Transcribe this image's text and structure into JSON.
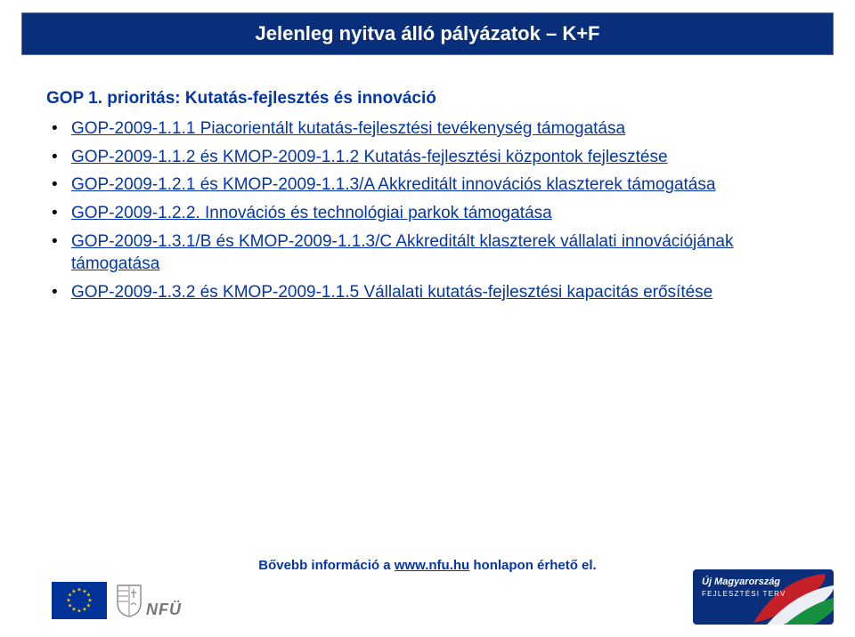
{
  "colors": {
    "title_bar_bg": "#0a2f7a",
    "title_text": "#ffffff",
    "heading_text": "#0536a5",
    "link_text": "#0536a5",
    "body_bg": "#ffffff",
    "eu_flag_bg": "#003399",
    "eu_star": "#ffcc00",
    "umft_bg": "#0a2f7a"
  },
  "title_bar": {
    "text": "Jelenleg nyitva álló pályázatok – K+F"
  },
  "content": {
    "heading": "GOP 1. prioritás: Kutatás-fejlesztés és innováció",
    "bullets": [
      {
        "prefix": "",
        "link": "GOP-2009-1.1.1 Piacorientált kutatás-fejlesztési tevékenység támogatása",
        "suffix": ""
      },
      {
        "prefix": "",
        "link": "GOP-2009-1.1.2 és KMOP-2009-1.1.2 Kutatás-fejlesztési központok fejlesztése",
        "suffix": ""
      },
      {
        "prefix": "",
        "link": "GOP-2009-1.2.1 és KMOP-2009-1.1.3/A Akkreditált innovációs klaszterek támogatása",
        "suffix": ""
      },
      {
        "prefix": "",
        "link": "GOP-2009-1.2.2. Innovációs és technológiai parkok támogatása",
        "suffix": ""
      },
      {
        "prefix": "",
        "link": "GOP-2009-1.3.1/B és KMOP-2009-1.1.3/C Akkreditált klaszterek vállalati innovációjának támogatása",
        "suffix": ""
      },
      {
        "prefix": "",
        "link": "GOP-2009-1.3.2 és KMOP-2009-1.1.5 Vállalati kutatás-fejlesztési kapacitás erősítése",
        "suffix": ""
      }
    ]
  },
  "footer": {
    "text_prefix": "Bővebb információ a ",
    "link_text": "www.nfu.hu",
    "text_suffix": " honlapon érhető el.",
    "nfu_label": "NFÜ",
    "umft_line1": "Új Magyarország",
    "umft_line2": "FEJLESZTÉSI TERV"
  }
}
